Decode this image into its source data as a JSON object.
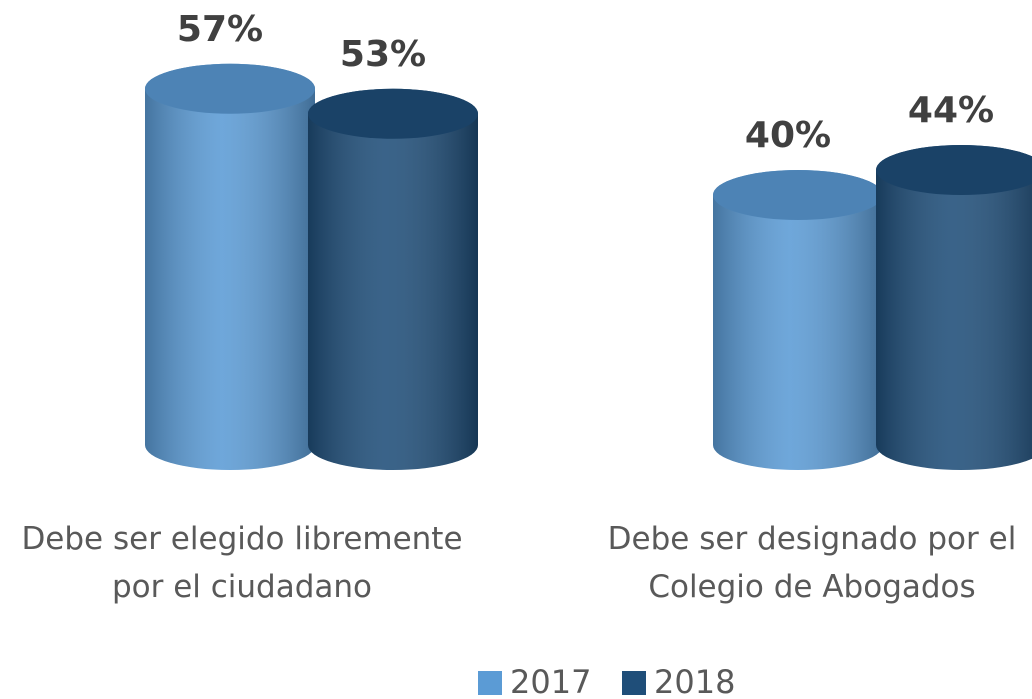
{
  "chart_data": {
    "type": "cylinder",
    "categories": [
      "Debe ser elegido libremente por el ciudadano",
      "Debe ser designado por el Colegio de Abogados"
    ],
    "series": [
      {
        "name": "2017",
        "color": "#5b9bd5",
        "values": [
          57,
          40
        ],
        "value_labels": [
          "57%",
          "40%"
        ]
      },
      {
        "name": "2018",
        "color": "#1f4e79",
        "values": [
          53,
          44
        ],
        "value_labels": [
          "53%",
          "44%"
        ]
      }
    ],
    "legend": "bottom"
  }
}
